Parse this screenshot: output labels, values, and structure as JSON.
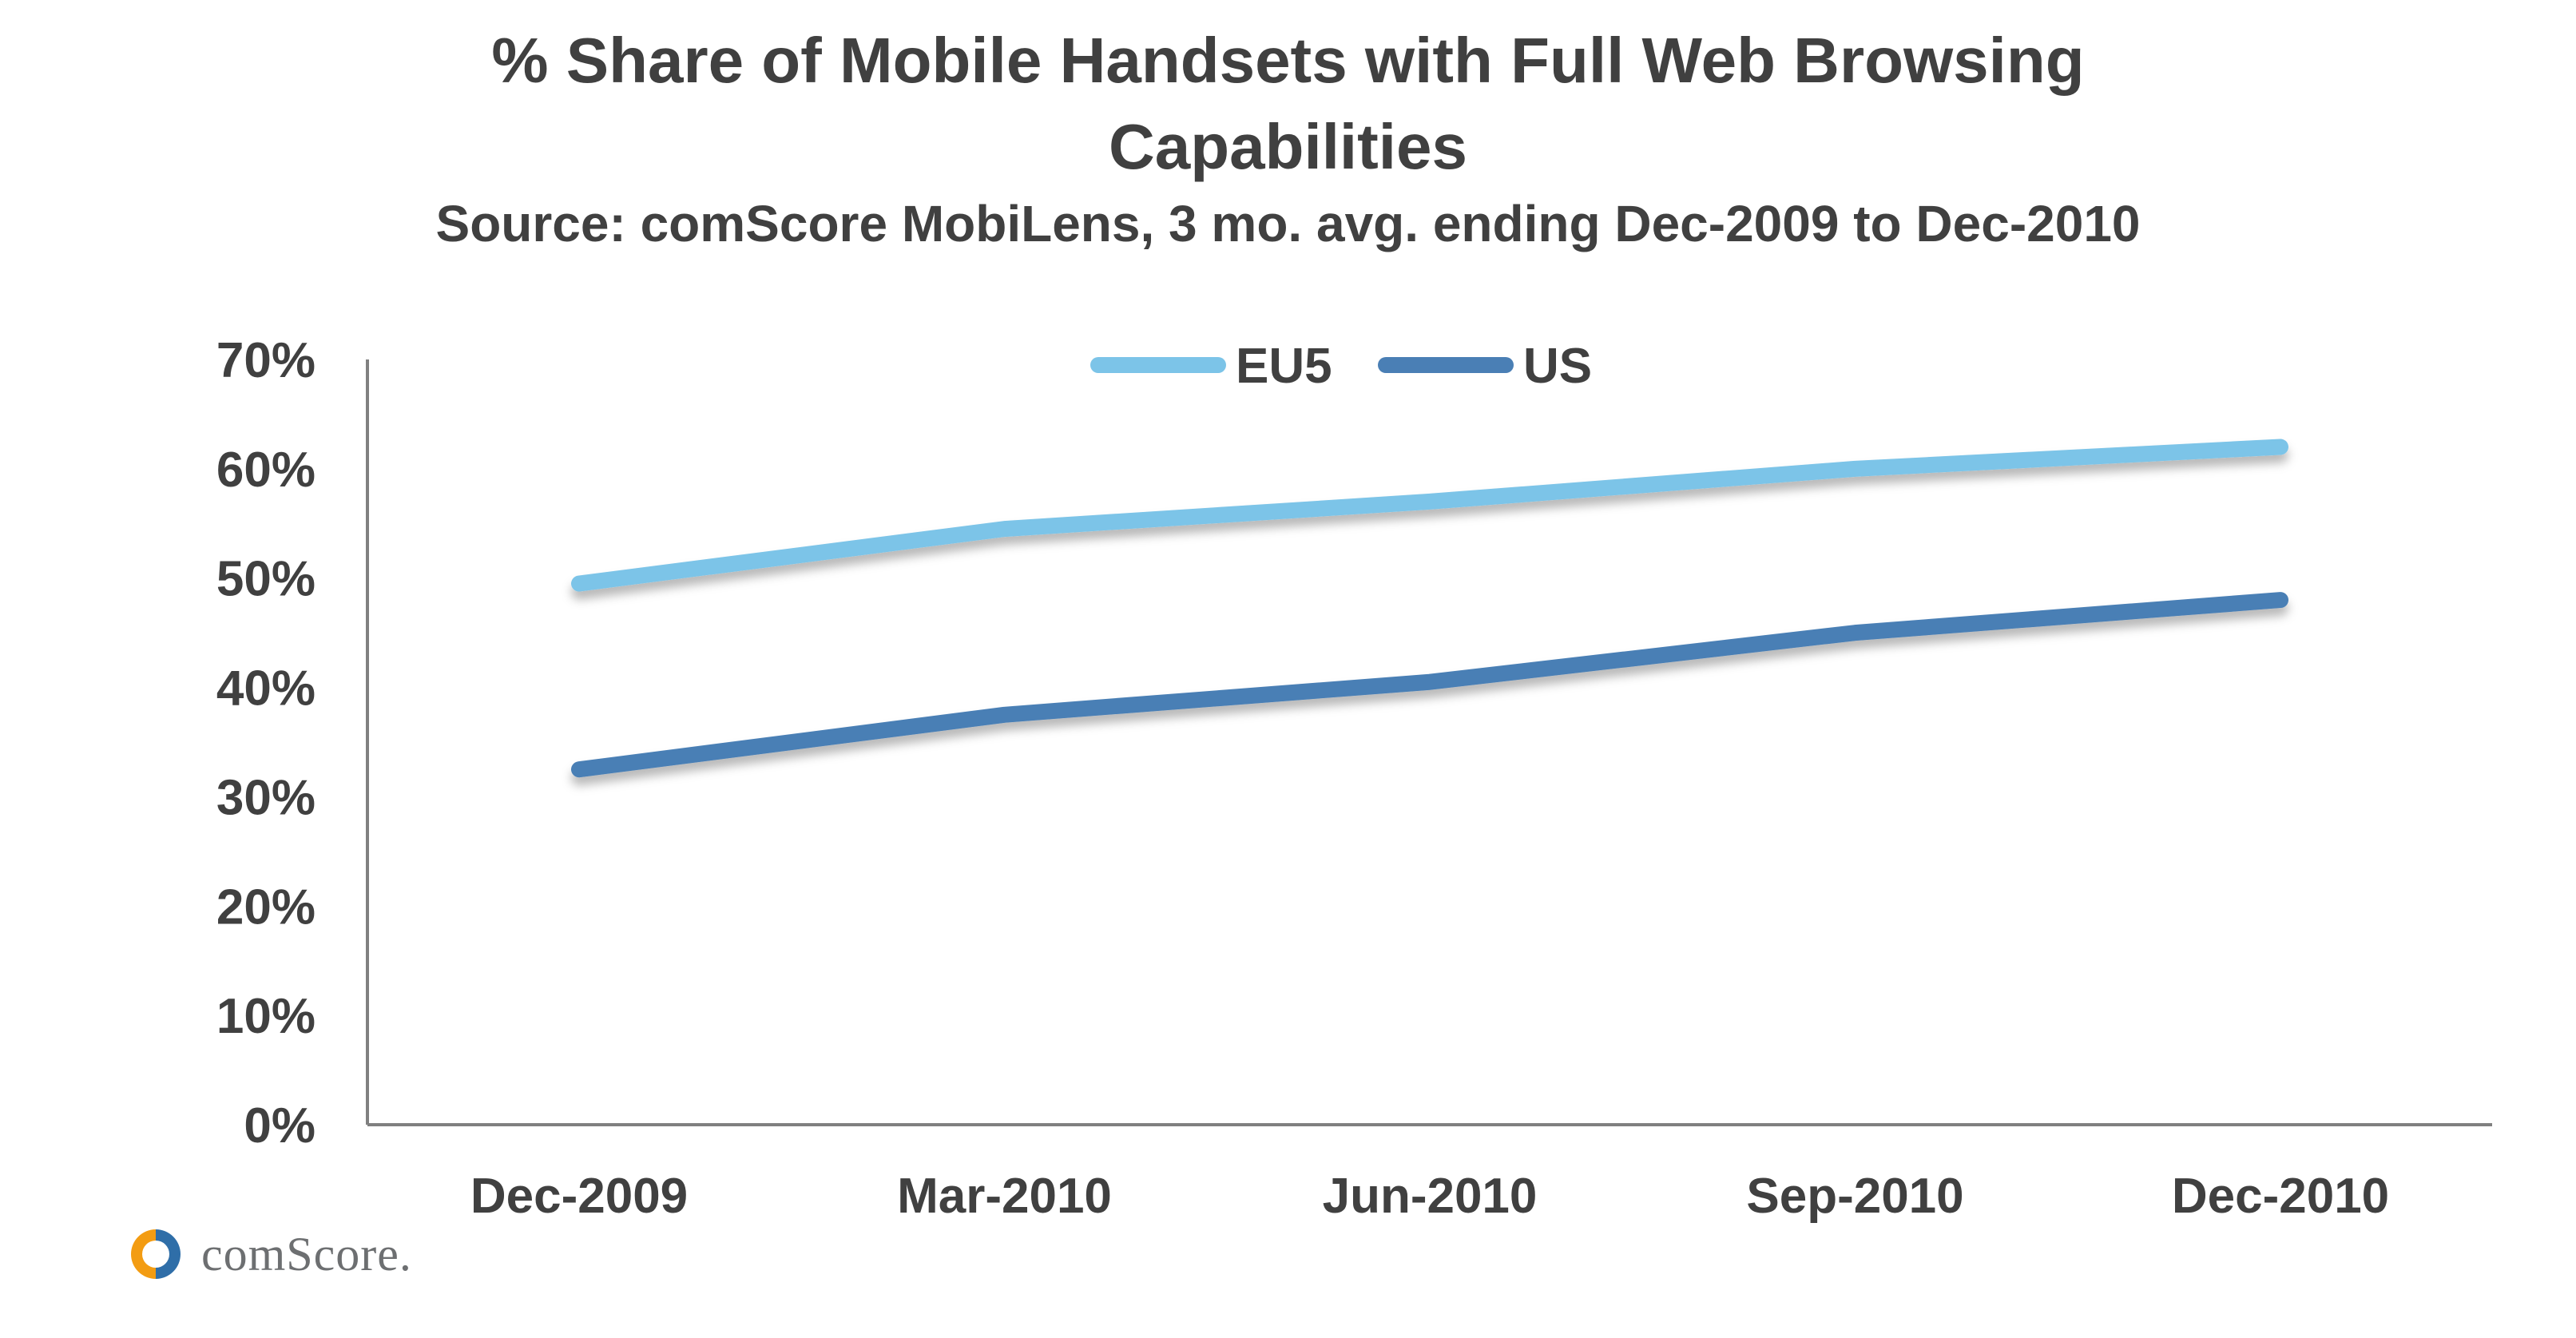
{
  "chart_data": {
    "type": "line",
    "title_line_1": "% Share of Mobile Handsets with Full Web Browsing",
    "title_line_2": "Capabilities",
    "subtitle": "Source: comScore MobiLens, 3 mo. avg. ending Dec-2009 to Dec-2010",
    "xlabel": "",
    "ylabel": "",
    "categories": [
      "Dec-2009",
      "Mar-2010",
      "Jun-2010",
      "Sep-2010",
      "Dec-2010"
    ],
    "y_ticks": [
      "0%",
      "10%",
      "20%",
      "30%",
      "40%",
      "50%",
      "60%",
      "70%"
    ],
    "ylim": [
      0,
      70
    ],
    "grid": false,
    "legend_position": "top-center",
    "series": [
      {
        "name": "EU5",
        "values": [
          49.5,
          54.5,
          57,
          60,
          62
        ],
        "color": "#7cc4e8"
      },
      {
        "name": "US",
        "values": [
          32.5,
          37.5,
          40.5,
          45,
          48
        ],
        "color": "#4a7fb5"
      }
    ]
  },
  "logo": {
    "text": "comScore.",
    "colors": {
      "orange": "#f39c12",
      "blue": "#2f6ea8"
    }
  }
}
